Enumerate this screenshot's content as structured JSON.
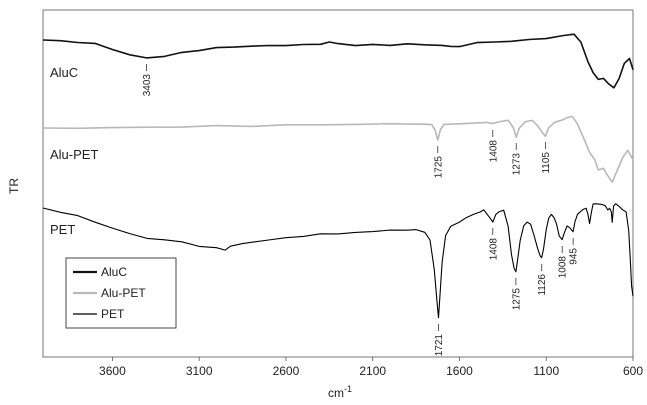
{
  "chart_data": {
    "type": "line",
    "xlabel": "cm",
    "xlabel_sup": "-1",
    "ylabel": "TR",
    "xlim": [
      4000,
      600
    ],
    "x_reversed": true,
    "x_ticks": [
      3600,
      3100,
      2600,
      2100,
      1600,
      1100,
      600
    ],
    "x_tick_labels": [
      "3600",
      "3100",
      "2600",
      "2100",
      "1600",
      "1100",
      "600"
    ],
    "grid": false,
    "legend_placement": "bottom-left",
    "legend": [
      "AluC",
      "Alu-PET",
      "PET"
    ],
    "series": [
      {
        "name": "AluC",
        "color": "#111111",
        "label": "AluC",
        "points": [
          [
            4000,
            40
          ],
          [
            3900,
            41
          ],
          [
            3800,
            42
          ],
          [
            3700,
            44
          ],
          [
            3600,
            49
          ],
          [
            3500,
            55
          ],
          [
            3403,
            58
          ],
          [
            3300,
            56
          ],
          [
            3200,
            53
          ],
          [
            3100,
            50
          ],
          [
            3000,
            48
          ],
          [
            2900,
            47
          ],
          [
            2800,
            46
          ],
          [
            2700,
            46
          ],
          [
            2600,
            45
          ],
          [
            2500,
            45
          ],
          [
            2400,
            44
          ],
          [
            2350,
            42
          ],
          [
            2300,
            44
          ],
          [
            2200,
            45
          ],
          [
            2100,
            45
          ],
          [
            2000,
            45
          ],
          [
            1900,
            44
          ],
          [
            1800,
            45
          ],
          [
            1700,
            45
          ],
          [
            1650,
            47
          ],
          [
            1600,
            46
          ],
          [
            1500,
            43
          ],
          [
            1400,
            42
          ],
          [
            1300,
            41
          ],
          [
            1200,
            40
          ],
          [
            1100,
            38
          ],
          [
            1000,
            36
          ],
          [
            940,
            34
          ],
          [
            900,
            42
          ],
          [
            860,
            62
          ],
          [
            830,
            72
          ],
          [
            800,
            80
          ],
          [
            770,
            78
          ],
          [
            740,
            84
          ],
          [
            710,
            88
          ],
          [
            680,
            78
          ],
          [
            650,
            64
          ],
          [
            620,
            58
          ],
          [
            600,
            70
          ]
        ],
        "peaks": [
          {
            "x": 3403,
            "label": "3403"
          }
        ]
      },
      {
        "name": "Alu-PET",
        "color": "#b8b8b8",
        "label": "Alu-PET",
        "points": [
          [
            4000,
            128
          ],
          [
            3800,
            128
          ],
          [
            3600,
            128
          ],
          [
            3400,
            127
          ],
          [
            3200,
            127
          ],
          [
            3000,
            126
          ],
          [
            2800,
            126
          ],
          [
            2600,
            125
          ],
          [
            2400,
            125
          ],
          [
            2200,
            124
          ],
          [
            2000,
            124
          ],
          [
            1900,
            124
          ],
          [
            1800,
            124
          ],
          [
            1760,
            125
          ],
          [
            1740,
            130
          ],
          [
            1725,
            140
          ],
          [
            1710,
            130
          ],
          [
            1690,
            124
          ],
          [
            1600,
            124
          ],
          [
            1500,
            123
          ],
          [
            1440,
            122
          ],
          [
            1408,
            124
          ],
          [
            1380,
            122
          ],
          [
            1320,
            120
          ],
          [
            1290,
            128
          ],
          [
            1273,
            137
          ],
          [
            1255,
            128
          ],
          [
            1220,
            122
          ],
          [
            1180,
            120
          ],
          [
            1150,
            126
          ],
          [
            1125,
            132
          ],
          [
            1105,
            136
          ],
          [
            1085,
            128
          ],
          [
            1050,
            122
          ],
          [
            1010,
            120
          ],
          [
            980,
            118
          ],
          [
            950,
            116
          ],
          [
            920,
            124
          ],
          [
            880,
            140
          ],
          [
            850,
            152
          ],
          [
            820,
            160
          ],
          [
            800,
            170
          ],
          [
            770,
            168
          ],
          [
            750,
            175
          ],
          [
            720,
            182
          ],
          [
            690,
            170
          ],
          [
            660,
            158
          ],
          [
            630,
            150
          ],
          [
            600,
            160
          ]
        ],
        "peaks": [
          {
            "x": 1725,
            "label": "1725"
          },
          {
            "x": 1408,
            "label": "1408"
          },
          {
            "x": 1273,
            "label": "1273"
          },
          {
            "x": 1105,
            "label": "1105"
          }
        ]
      },
      {
        "name": "PET",
        "color": "#000000",
        "label": "PET",
        "points": [
          [
            4000,
            208
          ],
          [
            3900,
            212
          ],
          [
            3800,
            216
          ],
          [
            3700,
            222
          ],
          [
            3600,
            228
          ],
          [
            3500,
            234
          ],
          [
            3400,
            238
          ],
          [
            3300,
            240
          ],
          [
            3200,
            242
          ],
          [
            3100,
            246
          ],
          [
            3000,
            248
          ],
          [
            2950,
            250
          ],
          [
            2920,
            246
          ],
          [
            2850,
            244
          ],
          [
            2800,
            242
          ],
          [
            2700,
            240
          ],
          [
            2600,
            238
          ],
          [
            2500,
            236
          ],
          [
            2400,
            234
          ],
          [
            2300,
            234
          ],
          [
            2200,
            232
          ],
          [
            2100,
            232
          ],
          [
            2000,
            230
          ],
          [
            1900,
            230
          ],
          [
            1850,
            230
          ],
          [
            1800,
            232
          ],
          [
            1770,
            240
          ],
          [
            1745,
            270
          ],
          [
            1730,
            300
          ],
          [
            1721,
            318
          ],
          [
            1712,
            295
          ],
          [
            1700,
            262
          ],
          [
            1680,
            236
          ],
          [
            1650,
            226
          ],
          [
            1600,
            222
          ],
          [
            1560,
            218
          ],
          [
            1520,
            214
          ],
          [
            1480,
            212
          ],
          [
            1460,
            210
          ],
          [
            1440,
            214
          ],
          [
            1425,
            218
          ],
          [
            1408,
            222
          ],
          [
            1390,
            214
          ],
          [
            1370,
            212
          ],
          [
            1345,
            210
          ],
          [
            1320,
            226
          ],
          [
            1300,
            255
          ],
          [
            1285,
            268
          ],
          [
            1275,
            272
          ],
          [
            1265,
            260
          ],
          [
            1250,
            240
          ],
          [
            1230,
            226
          ],
          [
            1210,
            222
          ],
          [
            1190,
            224
          ],
          [
            1170,
            236
          ],
          [
            1150,
            248
          ],
          [
            1135,
            256
          ],
          [
            1126,
            258
          ],
          [
            1115,
            248
          ],
          [
            1100,
            230
          ],
          [
            1085,
            218
          ],
          [
            1070,
            214
          ],
          [
            1055,
            218
          ],
          [
            1040,
            224
          ],
          [
            1025,
            236
          ],
          [
            1008,
            240
          ],
          [
            995,
            232
          ],
          [
            980,
            226
          ],
          [
            965,
            228
          ],
          [
            952,
            230
          ],
          [
            945,
            232
          ],
          [
            935,
            222
          ],
          [
            920,
            214
          ],
          [
            890,
            210
          ],
          [
            870,
            208
          ],
          [
            860,
            214
          ],
          [
            850,
            224
          ],
          [
            840,
            212
          ],
          [
            830,
            204
          ],
          [
            810,
            204
          ],
          [
            780,
            204
          ],
          [
            760,
            206
          ],
          [
            745,
            210
          ],
          [
            735,
            208
          ],
          [
            725,
            212
          ],
          [
            720,
            222
          ],
          [
            712,
            206
          ],
          [
            700,
            204
          ],
          [
            680,
            206
          ],
          [
            660,
            210
          ],
          [
            640,
            212
          ],
          [
            625,
            230
          ],
          [
            615,
            262
          ],
          [
            608,
            286
          ],
          [
            600,
            296
          ]
        ],
        "peaks": [
          {
            "x": 1721,
            "label": "1721"
          },
          {
            "x": 1408,
            "label": "1408"
          },
          {
            "x": 1275,
            "label": "1275"
          },
          {
            "x": 1126,
            "label": "1126"
          },
          {
            "x": 1008,
            "label": "1008"
          },
          {
            "x": 945,
            "label": "945"
          }
        ]
      }
    ]
  }
}
